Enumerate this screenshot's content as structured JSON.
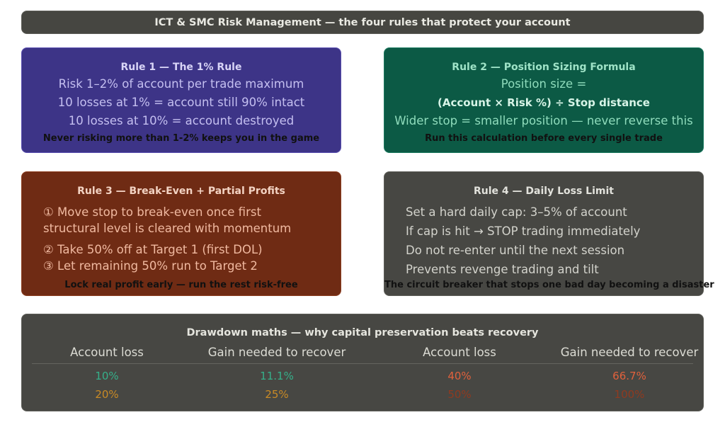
{
  "header": {
    "title": "ICT & SMC Risk Management — the four rules that protect your account"
  },
  "rule1": {
    "title": "Rule 1 — The 1% Rule",
    "lines": [
      "Risk 1–2% of account per trade maximum",
      "10 losses at 1% = account still 90% intact",
      "10 losses at 10% = account destroyed"
    ],
    "footer": "Never risking more than 1-2% keeps you in the game"
  },
  "rule2": {
    "title": "Rule 2 — Position Sizing Formula",
    "lines": [
      "Position size =",
      "(Account × Risk %) ÷ Stop distance",
      "Wider stop = smaller position — never reverse this"
    ],
    "footer": "Run this calculation before every single trade"
  },
  "rule3": {
    "title": "Rule 3 — Break-Even + Partial Profits",
    "lines": [
      "① Move stop to break-even once first",
      "structural level is cleared with momentum",
      "② Take 50% off at Target 1 (first DOL)",
      "③ Let remaining 50% run to Target 2"
    ],
    "footer": "Lock real profit early — run the rest risk-free"
  },
  "rule4": {
    "title": "Rule 4 — Daily Loss Limit",
    "lines": [
      "Set a hard daily cap: 3–5% of account",
      "If cap is hit → STOP trading immediately",
      "Do not re-enter until the next session",
      "Prevents revenge trading and tilt"
    ],
    "footer": "The circuit breaker that stops one bad day becoming a disaster"
  },
  "drawdown": {
    "title": "Drawdown maths — why capital preservation beats recovery",
    "headers": [
      "Account loss",
      "Gain needed to recover",
      "Account loss",
      "Gain needed to recover"
    ],
    "rows": [
      [
        "10%",
        "11.1%",
        "40%",
        "66.7%"
      ],
      [
        "20%",
        "25%",
        "50%",
        "100%"
      ]
    ],
    "colors": {
      "row1_left": "#35b08a",
      "row1_right": "#e0613c",
      "row2_left": "#c98a25",
      "row2_right": "#8f3a20"
    }
  }
}
